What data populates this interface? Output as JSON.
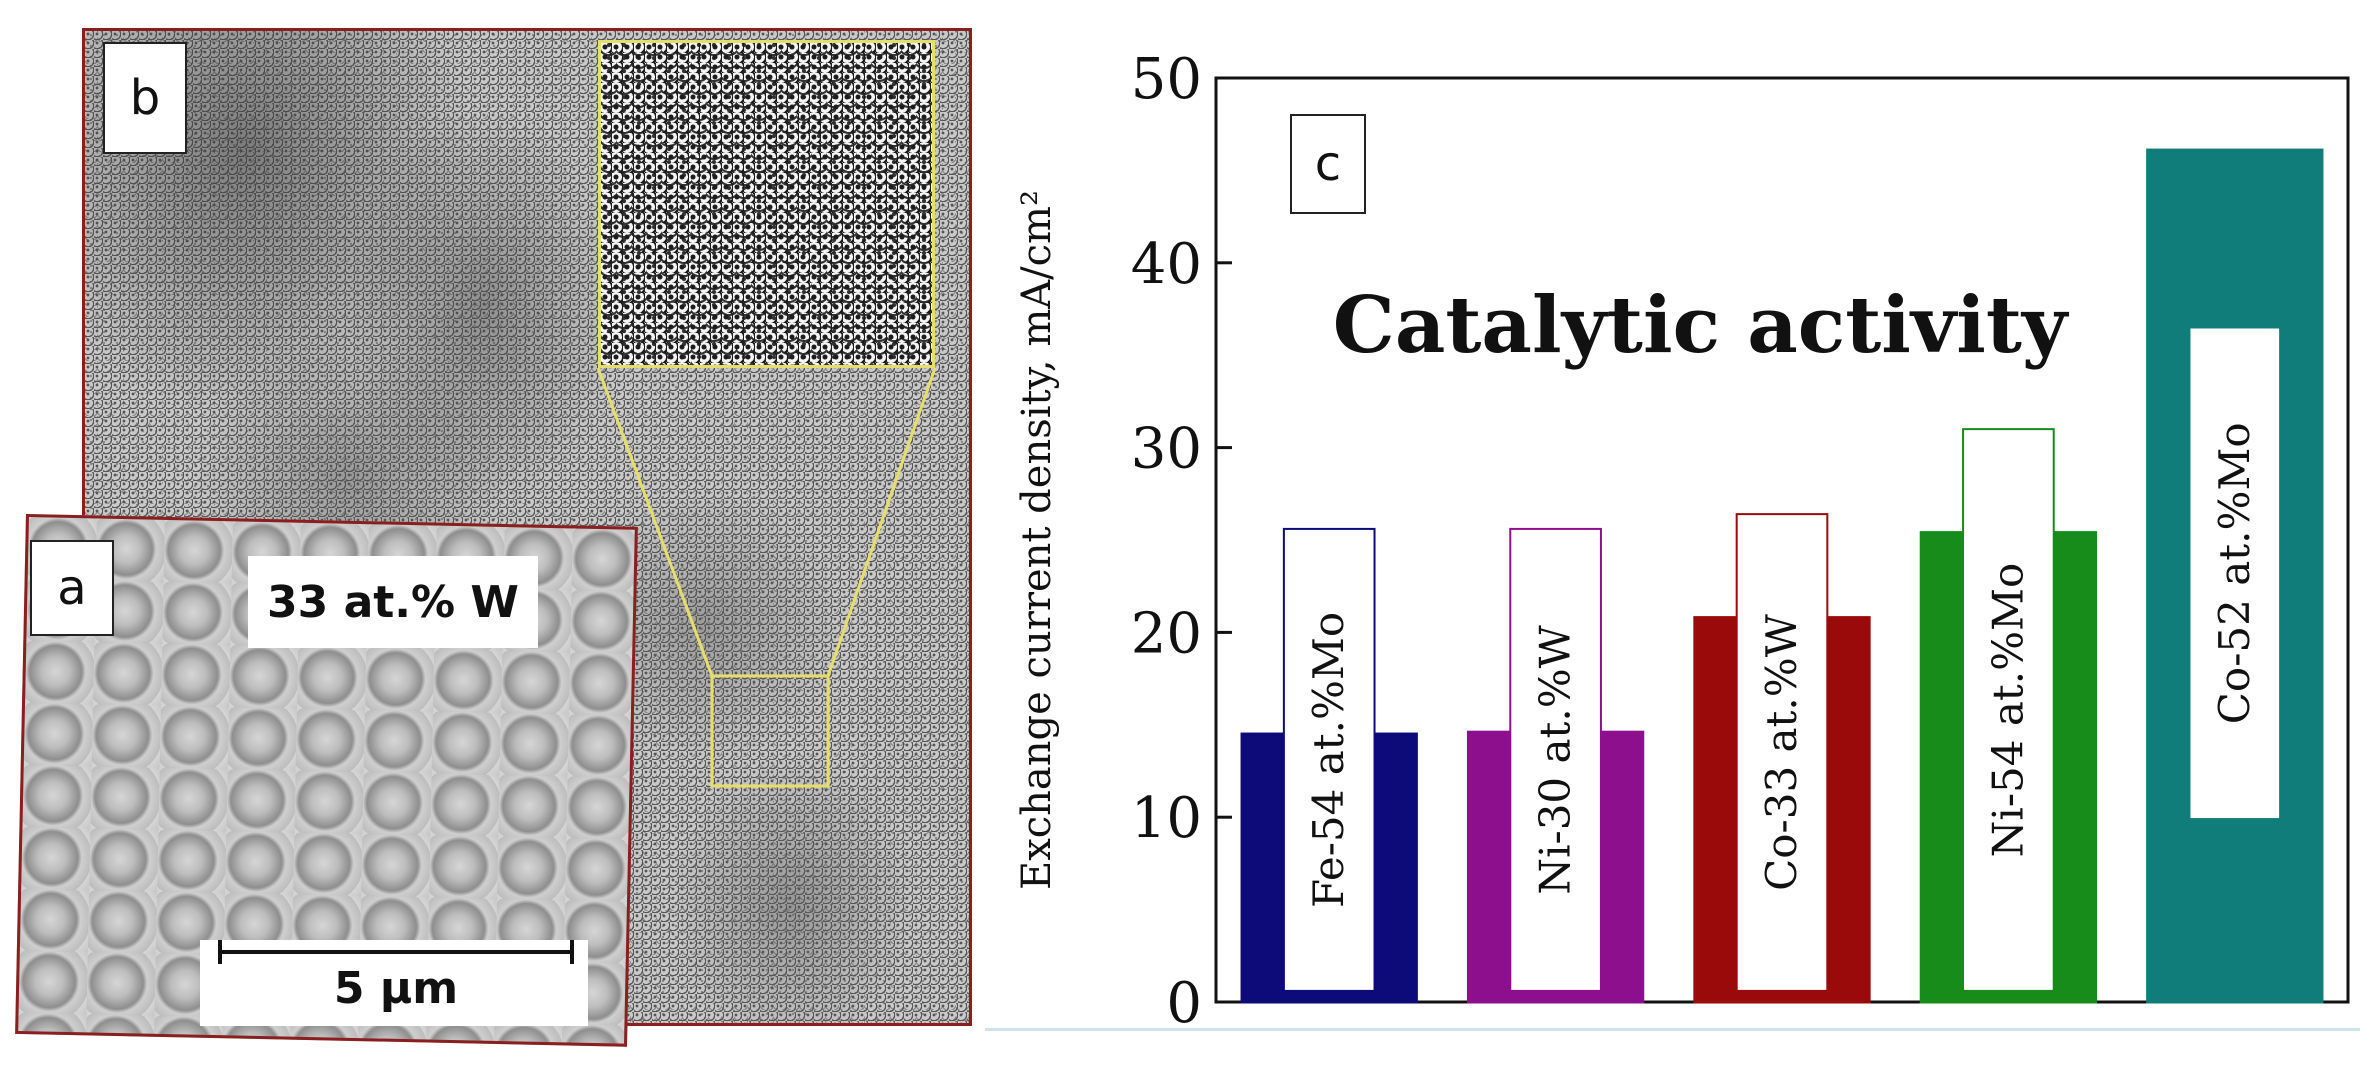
{
  "micrograph": {
    "panel_b_label": "b",
    "panel_a_label": "a",
    "composition": "33 at.% W",
    "scale_bar": "5 μm"
  },
  "colors": {
    "frame": "#8b1e1e",
    "zoom": "#e6de6a"
  },
  "chart_data": {
    "type": "bar",
    "panel_label": "c",
    "title": "Catalytic activity",
    "ylabel": "Exchange current density, mA/cm²",
    "xlabel": "",
    "ylim": [
      0,
      50
    ],
    "yticks": [
      0,
      10,
      20,
      30,
      40,
      50
    ],
    "categories": [
      "Fe-54 at.%Mo",
      "Ni-30 at.%W",
      "Co-33 at.%W",
      "Ni-54 at.%Mo",
      "Co-52 at.%Mo"
    ],
    "values": [
      14.5,
      14.6,
      20.8,
      25.4,
      46.1
    ],
    "colors": [
      "#0d0a7a",
      "#8e0f8e",
      "#9a0a0a",
      "#178c1a",
      "#117d7a"
    ]
  }
}
